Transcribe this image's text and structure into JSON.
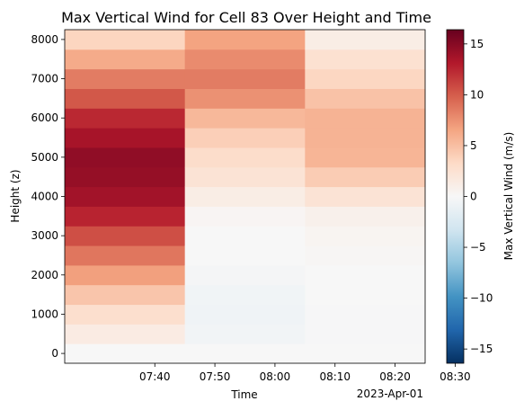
{
  "chart_data": {
    "type": "heatmap",
    "title": "Max Vertical Wind for Cell 83 Over Height and Time",
    "xlabel": "Time",
    "ylabel": "Height (z)",
    "x_offset_label": "2023-Apr-01",
    "x_ticks": [
      "07:40",
      "07:50",
      "08:00",
      "08:10",
      "08:20",
      "08:30"
    ],
    "x_columns": [
      "07:35",
      "07:55",
      "08:15",
      "08:35"
    ],
    "y_ticks": [
      0,
      1000,
      2000,
      3000,
      4000,
      5000,
      6000,
      7000,
      8000
    ],
    "y_cell_size": 500,
    "y_cells": [
      0,
      500,
      1000,
      1500,
      2000,
      2500,
      3000,
      3500,
      4000,
      4500,
      5000,
      5500,
      6000,
      6500,
      7000,
      7500,
      8000
    ],
    "values": [
      [
        0.0,
        1.4,
        2.8,
        4.6,
        6.8,
        8.8,
        10.6,
        12.6,
        13.8,
        14.4,
        14.6,
        13.6,
        12.4,
        10.2,
        8.5,
        6.2,
        3.6
      ],
      [
        0.0,
        -0.5,
        -0.7,
        -0.6,
        -0.3,
        0.0,
        0.0,
        0.3,
        1.2,
        2.3,
        3.0,
        4.0,
        5.4,
        7.5,
        8.5,
        7.8,
        6.6
      ],
      [
        0.0,
        -0.1,
        -0.1,
        0.0,
        0.0,
        0.2,
        0.4,
        0.8,
        2.3,
        4.2,
        5.6,
        5.7,
        5.7,
        4.8,
        3.5,
        2.6,
        1.2
      ]
    ],
    "colorbar": {
      "label": "Max Vertical Wind (m/s)",
      "colormap": "RdBu_r",
      "range": [
        -16.4,
        16.4
      ],
      "ticks": [
        -15,
        -10,
        -5,
        0,
        5,
        10,
        15
      ]
    },
    "grid": false,
    "legend": "none"
  }
}
